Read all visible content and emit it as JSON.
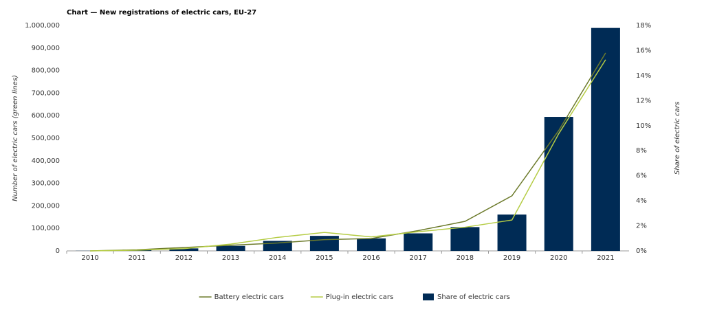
{
  "chart_data": {
    "type": "bar",
    "title": "Chart — New registrations of electric cars, EU-27",
    "ylabel": "Number of electric cars (green lines)",
    "y2label": "Share of electric cars",
    "categories": [
      "2010",
      "2011",
      "2012",
      "2013",
      "2014",
      "2015",
      "2016",
      "2017",
      "2018",
      "2019",
      "2020",
      "2021"
    ],
    "series": [
      {
        "name": "Battery electric cars",
        "type": "line",
        "color": "#6d7b2c",
        "values": [
          0,
          5000,
          15000,
          25000,
          35000,
          50000,
          55000,
          90000,
          131000,
          244000,
          534000,
          878000
        ]
      },
      {
        "name": "Plug-in electric cars",
        "type": "line",
        "color": "#b5cc45",
        "values": [
          0,
          3000,
          10000,
          30000,
          60000,
          82000,
          62000,
          85000,
          105000,
          137000,
          520000,
          848000
        ]
      },
      {
        "name": "Share of electric cars",
        "type": "bar",
        "axis": "y2",
        "color": "#002b55",
        "values": [
          0.01,
          0.1,
          0.2,
          0.4,
          0.8,
          1.2,
          1.0,
          1.4,
          1.9,
          2.9,
          10.7,
          17.8
        ]
      }
    ],
    "ylim": [
      0,
      1000000
    ],
    "yticks": [
      0,
      {
        "value": 100000,
        "label": "100,000"
      },
      {
        "value": 200000,
        "label": "200,000"
      },
      {
        "value": 300000,
        "label": "300,000"
      },
      {
        "value": 400000,
        "label": "400,000"
      },
      {
        "value": 500000,
        "label": "500,000"
      },
      {
        "value": 600000,
        "label": "600,000"
      },
      {
        "value": 700000,
        "label": "700,000"
      },
      {
        "value": 800000,
        "label": "800,000"
      },
      {
        "value": 900000,
        "label": "900,000"
      },
      {
        "value": 1000000,
        "label": "1,000,000"
      }
    ],
    "y2lim": [
      0,
      18
    ],
    "y2ticks": [
      {
        "value": 0,
        "label": "0%"
      },
      {
        "value": 2,
        "label": "2%"
      },
      {
        "value": 4,
        "label": "4%"
      },
      {
        "value": 6,
        "label": "6%"
      },
      {
        "value": 8,
        "label": "8%"
      },
      {
        "value": 10,
        "label": "10%"
      },
      {
        "value": 12,
        "label": "12%"
      },
      {
        "value": 14,
        "label": "14%"
      },
      {
        "value": 16,
        "label": "16%"
      },
      {
        "value": 18,
        "label": "18%"
      }
    ],
    "grid": false,
    "legend": "bottom"
  }
}
